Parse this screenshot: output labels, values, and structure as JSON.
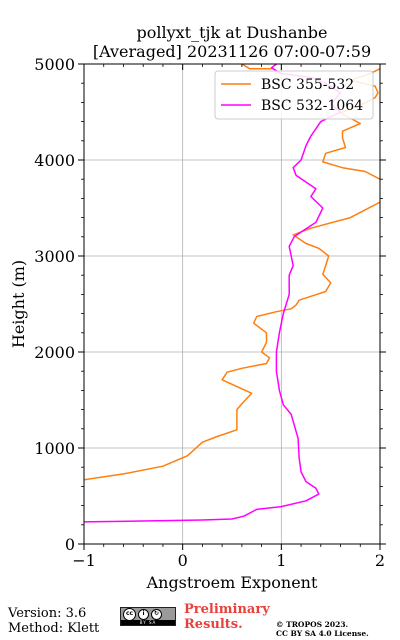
{
  "chart_data": {
    "type": "line",
    "title": [
      "pollyxt_tjk at Dushanbe",
      "[Averaged] 20231126 07:00-07:59"
    ],
    "xlabel": "Angstroem Exponent",
    "ylabel": "Height (m)",
    "xlim": [
      -1,
      2
    ],
    "ylim": [
      0,
      5000
    ],
    "xticks": [
      -1,
      0,
      1,
      2
    ],
    "yticks": [
      0,
      1000,
      2000,
      3000,
      4000,
      5000
    ],
    "xtick_labels": [
      "−1",
      "0",
      "1",
      "2"
    ],
    "ytick_labels": [
      "0",
      "1000",
      "2000",
      "3000",
      "4000",
      "5000"
    ],
    "grid": true,
    "legend_position": "top-right",
    "series": [
      {
        "name": "BSC 355-532",
        "color": "#ff7f0e",
        "points": [
          [
            -1.0,
            670
          ],
          [
            -0.6,
            730
          ],
          [
            -0.2,
            810
          ],
          [
            0.05,
            920
          ],
          [
            0.2,
            1060
          ],
          [
            0.35,
            1120
          ],
          [
            0.55,
            1190
          ],
          [
            0.55,
            1300
          ],
          [
            0.55,
            1400
          ],
          [
            0.6,
            1460
          ],
          [
            0.7,
            1570
          ],
          [
            0.55,
            1640
          ],
          [
            0.4,
            1710
          ],
          [
            0.45,
            1790
          ],
          [
            0.6,
            1830
          ],
          [
            0.85,
            1880
          ],
          [
            0.88,
            1940
          ],
          [
            0.8,
            2000
          ],
          [
            0.85,
            2100
          ],
          [
            0.85,
            2200
          ],
          [
            0.72,
            2300
          ],
          [
            0.75,
            2370
          ],
          [
            0.95,
            2420
          ],
          [
            1.1,
            2450
          ],
          [
            1.15,
            2490
          ],
          [
            1.18,
            2540
          ],
          [
            1.3,
            2580
          ],
          [
            1.45,
            2630
          ],
          [
            1.5,
            2720
          ],
          [
            1.42,
            2810
          ],
          [
            1.45,
            2900
          ],
          [
            1.48,
            3000
          ],
          [
            1.38,
            3080
          ],
          [
            1.25,
            3130
          ],
          [
            1.12,
            3220
          ],
          [
            1.3,
            3290
          ],
          [
            1.7,
            3400
          ],
          [
            2.0,
            3560
          ]
        ]
      },
      {
        "name": "",
        "color": "#ff7f0e",
        "points": [
          [
            2.0,
            3800
          ],
          [
            1.85,
            3880
          ],
          [
            1.62,
            3920
          ],
          [
            1.42,
            3980
          ],
          [
            1.45,
            4070
          ],
          [
            1.65,
            4130
          ],
          [
            1.62,
            4230
          ],
          [
            1.62,
            4300
          ],
          [
            1.8,
            4380
          ],
          [
            1.6,
            4490
          ],
          [
            1.82,
            4580
          ],
          [
            1.95,
            4650
          ],
          [
            1.98,
            4700
          ],
          [
            1.95,
            4770
          ],
          [
            1.7,
            4830
          ],
          [
            1.9,
            4900
          ],
          [
            2.0,
            4950
          ]
        ]
      },
      {
        "name": "",
        "color": "#ff7f0e",
        "points": [
          [
            0.6,
            5000
          ],
          [
            0.68,
            4950
          ],
          [
            0.9,
            4950
          ]
        ]
      },
      {
        "name": "BSC 532-1064",
        "color": "#ff00ff",
        "points": [
          [
            -1.0,
            230
          ],
          [
            0.2,
            250
          ],
          [
            0.5,
            260
          ],
          [
            0.62,
            290
          ],
          [
            0.75,
            360
          ],
          [
            1.0,
            390
          ],
          [
            1.25,
            450
          ],
          [
            1.38,
            520
          ],
          [
            1.35,
            580
          ],
          [
            1.25,
            650
          ],
          [
            1.2,
            750
          ],
          [
            1.18,
            900
          ],
          [
            1.17,
            1100
          ],
          [
            1.1,
            1350
          ],
          [
            1.02,
            1450
          ],
          [
            0.98,
            1600
          ],
          [
            0.95,
            1800
          ],
          [
            0.95,
            2000
          ],
          [
            0.98,
            2200
          ],
          [
            1.02,
            2400
          ],
          [
            1.08,
            2600
          ],
          [
            1.08,
            2800
          ],
          [
            1.12,
            2900
          ],
          [
            1.08,
            3100
          ],
          [
            1.13,
            3200
          ],
          [
            1.2,
            3250
          ],
          [
            1.35,
            3350
          ],
          [
            1.42,
            3500
          ],
          [
            1.3,
            3620
          ],
          [
            1.35,
            3700
          ],
          [
            1.15,
            3840
          ],
          [
            1.12,
            3920
          ],
          [
            1.2,
            4000
          ],
          [
            1.25,
            4150
          ],
          [
            1.3,
            4250
          ],
          [
            1.4,
            4400
          ],
          [
            1.6,
            4500
          ],
          [
            1.5,
            4580
          ],
          [
            1.6,
            4700
          ],
          [
            1.45,
            4800
          ],
          [
            1.3,
            4860
          ],
          [
            1.0,
            4900
          ],
          [
            0.9,
            4960
          ],
          [
            0.95,
            5000
          ]
        ]
      }
    ]
  },
  "footer": {
    "version": "Version: 3.6",
    "method": "Method: Klett",
    "preliminary": [
      "Preliminary",
      "Results."
    ],
    "copyright": [
      "© TROPOS 2023.",
      "CC BY SA 4.0 License."
    ]
  }
}
